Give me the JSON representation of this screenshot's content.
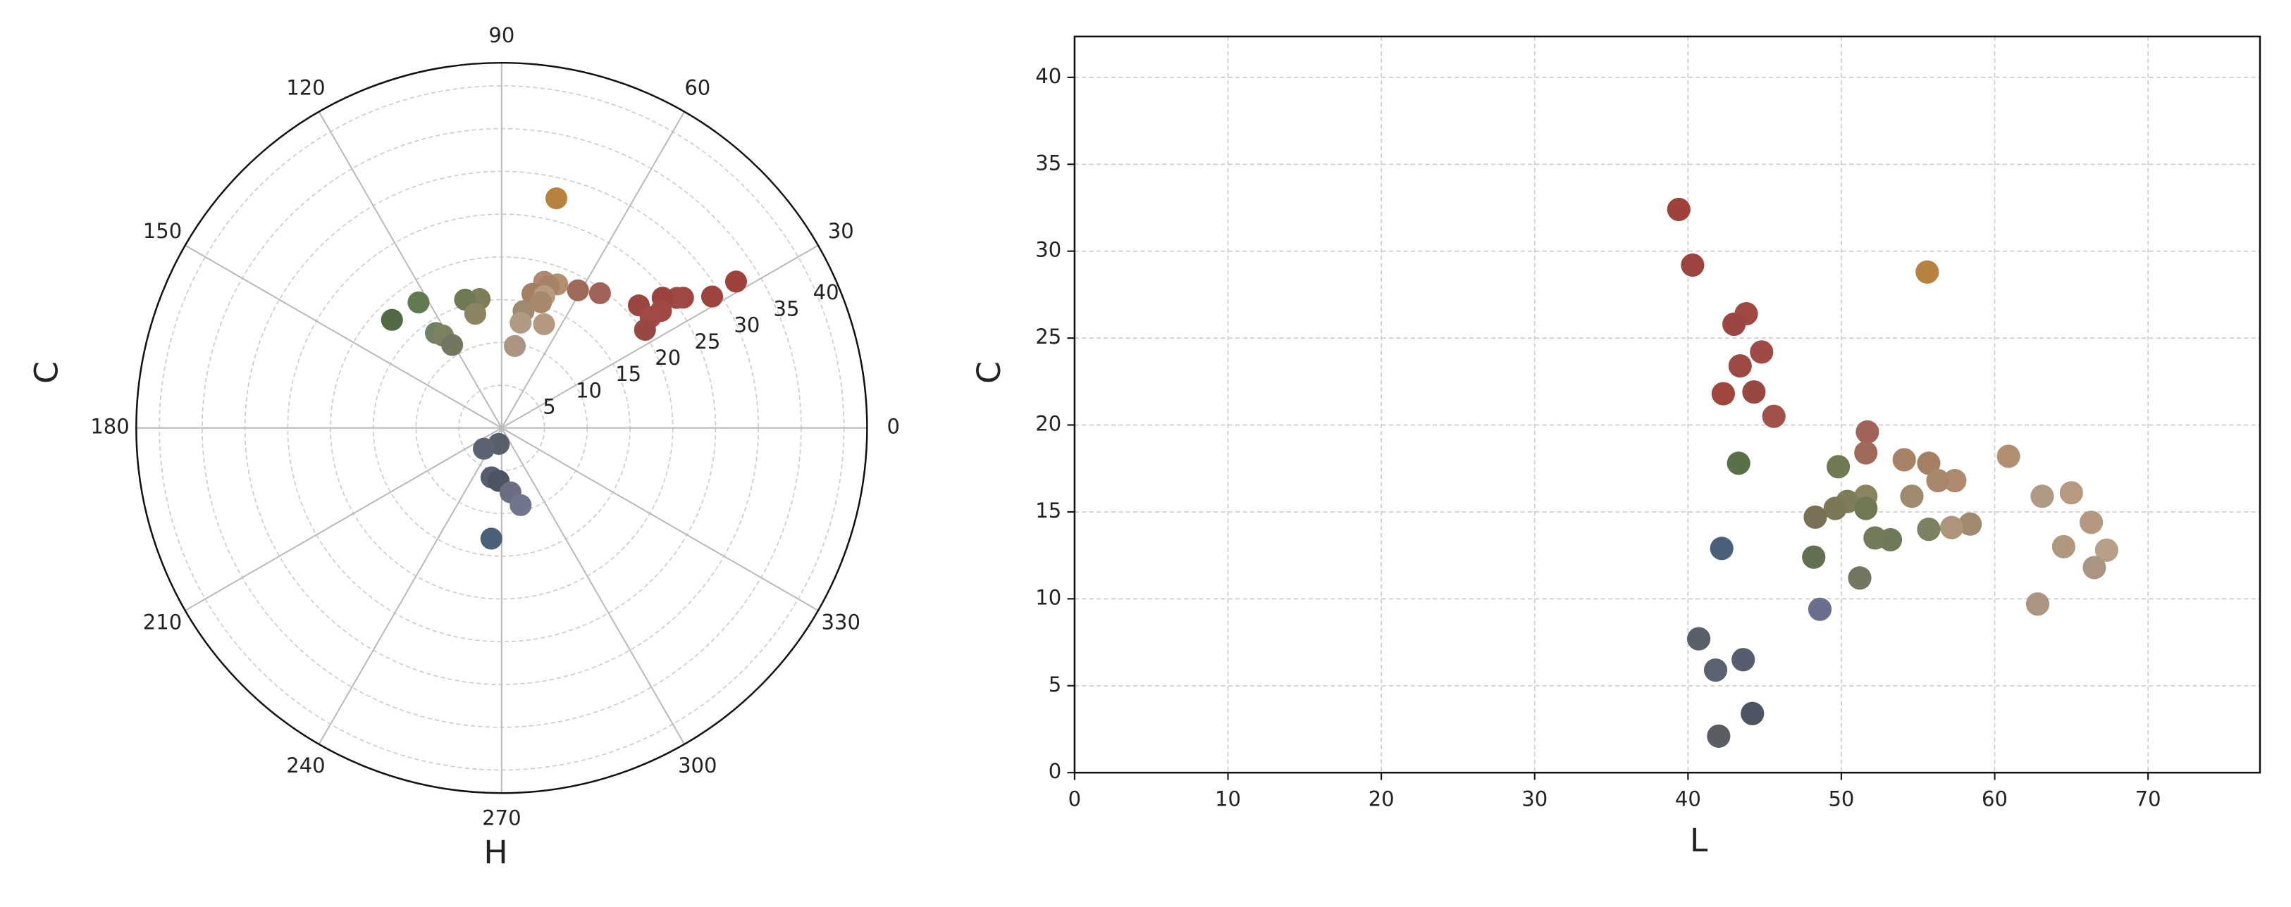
{
  "chart_data": [
    {
      "type": "polar-scatter",
      "xlabel": "H",
      "ylabel": "C",
      "rlim": [
        0,
        42.7
      ],
      "rticks": [
        5,
        10,
        15,
        20,
        25,
        30,
        35,
        40
      ],
      "thetaticks": [
        0,
        30,
        60,
        90,
        120,
        150,
        180,
        210,
        240,
        270,
        300,
        330
      ],
      "grid": true,
      "theta": [
        32.0,
        32.0,
        35.7,
        36.6,
        39.0,
        36.3,
        41.8,
        36.7,
        34.4,
        53.9,
        61.0,
        68.8,
        73.8,
        71.7,
        77.1,
        72.1,
        72.6,
        79.4,
        79.8,
        67.8,
        80.9,
        99.7,
        105.9,
        103.0,
        123.5,
        135.4,
        124.7,
        122.4,
        120.8,
        259.7,
        229.4,
        258.4,
        266.8,
        277.8,
        283.8,
        264.7,
        76.6
      ],
      "r": [
        32.3,
        29.0,
        26.1,
        25.5,
        24.2,
        23.1,
        21.5,
        21.7,
        20.3,
        19.5,
        18.4,
        18.0,
        17.8,
        17.5,
        16.1,
        16.2,
        15.4,
        13.9,
        12.5,
        13.1,
        9.7,
        15.3,
        15.6,
        13.7,
        17.6,
        18.0,
        13.5,
        12.8,
        11.3,
        1.9,
        3.2,
        5.9,
        6.2,
        7.6,
        9.3,
        13.0,
        27.6
      ],
      "colors": [
        "#9f4239",
        "#9c453f",
        "#a0463f",
        "#9d4a44",
        "#9a4340",
        "#a04842",
        "#9b4642",
        "#a24a45",
        "#984843",
        "#a0635a",
        "#a06a58",
        "#b38f72",
        "#b08a6e",
        "#a88266",
        "#a57f62",
        "#b89a80",
        "#a8886c",
        "#9e8a6e",
        "#b19a84",
        "#b49880",
        "#aa9484",
        "#7e7d5a",
        "#6f7a55",
        "#8a8460",
        "#627a52",
        "#516a45",
        "#6f8064",
        "#7a8262",
        "#737660",
        "#59606a",
        "#5b6270",
        "#555d6e",
        "#4e5562",
        "#6b6e80",
        "#72768c",
        "#4a6078",
        "#b5823f"
      ]
    },
    {
      "type": "scatter",
      "xlabel": "L",
      "ylabel": "C",
      "xlim": [
        0,
        77.3
      ],
      "ylim": [
        0,
        42.35
      ],
      "xticks": [
        0,
        10,
        20,
        30,
        40,
        50,
        60,
        70
      ],
      "yticks": [
        0,
        5,
        10,
        15,
        20,
        25,
        30,
        35,
        40
      ],
      "grid": true,
      "x": [
        39.4,
        40.3,
        55.6,
        43.8,
        43.0,
        44.8,
        43.4,
        44.3,
        42.3,
        45.6,
        51.7,
        51.6,
        60.9,
        54.1,
        55.7,
        49.8,
        43.3,
        57.4,
        56.3,
        65.0,
        54.6,
        63.1,
        51.6,
        50.4,
        49.6,
        51.6,
        48.3,
        66.3,
        58.4,
        57.2,
        55.7,
        52.2,
        53.2,
        64.5,
        67.3,
        42.2,
        48.2,
        66.5,
        51.2,
        62.8,
        48.6,
        40.7,
        43.6,
        41.8,
        44.2,
        42.0
      ],
      "values": [
        32.4,
        29.2,
        28.8,
        26.4,
        25.8,
        24.2,
        23.4,
        21.9,
        21.8,
        20.5,
        19.6,
        18.4,
        18.2,
        18.0,
        17.8,
        17.6,
        17.8,
        16.8,
        16.8,
        16.1,
        15.9,
        15.9,
        15.9,
        15.6,
        15.2,
        15.2,
        14.7,
        14.4,
        14.3,
        14.1,
        14.0,
        13.5,
        13.4,
        13.0,
        12.8,
        12.9,
        12.4,
        11.8,
        11.2,
        9.7,
        9.4,
        7.7,
        6.5,
        5.9,
        3.4,
        2.1
      ],
      "colors": [
        "#9f4239",
        "#9c453f",
        "#b5823f",
        "#a04842",
        "#9b4642",
        "#9f4a44",
        "#9d4a44",
        "#984843",
        "#a0463f",
        "#a2524a",
        "#a0635a",
        "#a06a58",
        "#b38f72",
        "#a88266",
        "#a57f62",
        "#6f7a55",
        "#5a7048",
        "#b08a6e",
        "#a8886c",
        "#b89a80",
        "#9e8a6e",
        "#b19a84",
        "#8a8460",
        "#7e7d5a",
        "#7a7858",
        "#6f7a55",
        "#7a7058",
        "#b49880",
        "#a08a70",
        "#ae9478",
        "#7a8262",
        "#737a5c",
        "#6f7a5a",
        "#b0987e",
        "#b8a088",
        "#4a6078",
        "#627052",
        "#aa9484",
        "#737660",
        "#aa9484",
        "#6b6e8c",
        "#59606a",
        "#555d6e",
        "#5b6270",
        "#4e5562",
        "#5a5e62"
      ]
    }
  ]
}
